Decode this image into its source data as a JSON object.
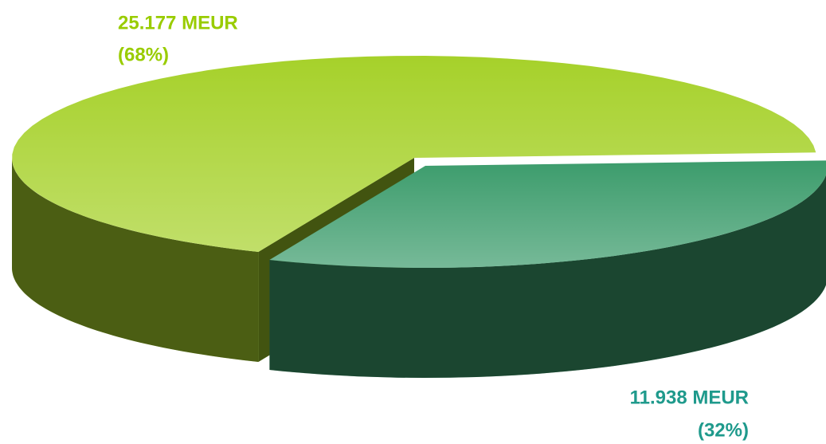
{
  "chart_data": {
    "type": "pie3d",
    "values": [
      25.177,
      11.938
    ],
    "value_labels": [
      "25.177 MEUR",
      "11.938 MEUR"
    ],
    "percent_labels": [
      "(68%)",
      "(32%)"
    ],
    "colors": [
      "#a6d12a",
      "#3c9c6c"
    ],
    "label_colors": [
      "#99cc00",
      "#1f9a8c"
    ]
  }
}
